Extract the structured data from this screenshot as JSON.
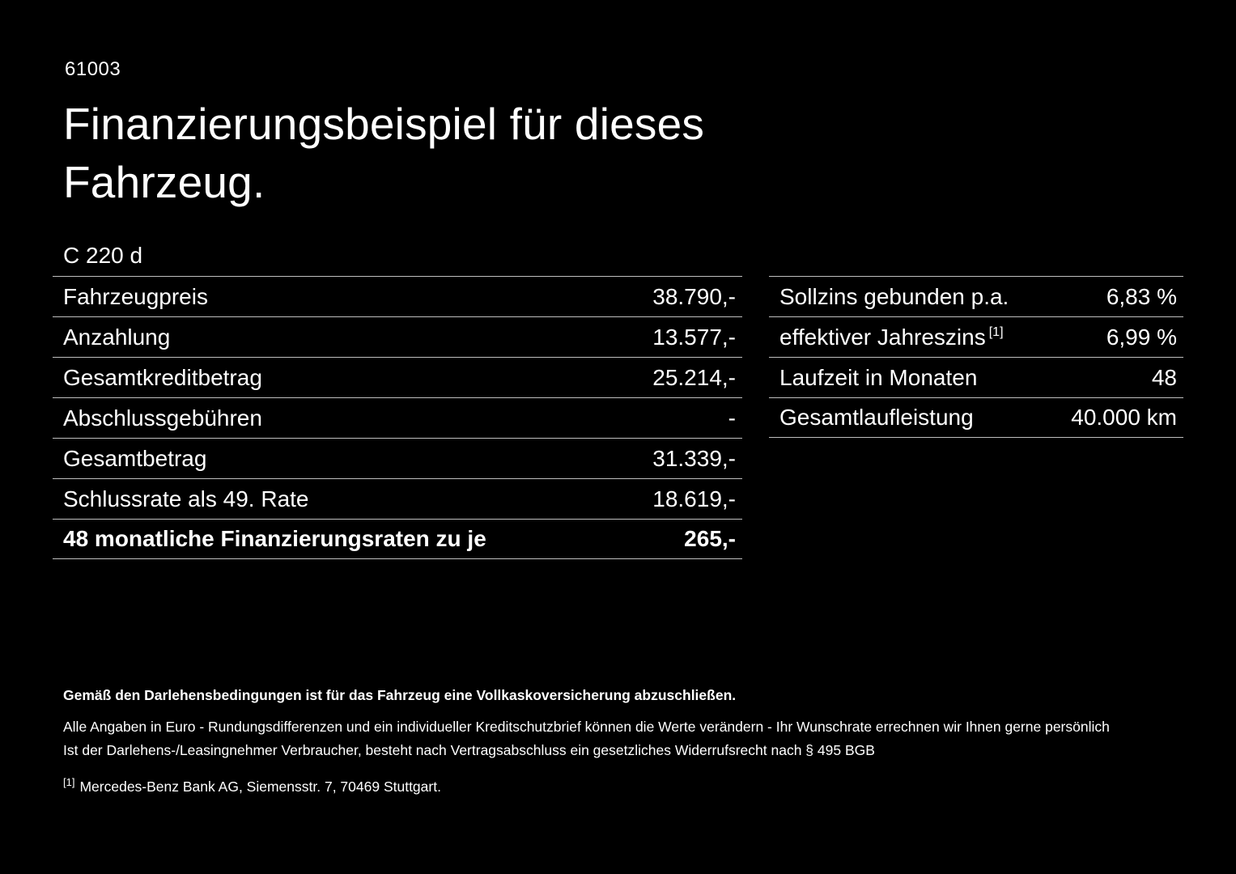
{
  "header": {
    "code": "61003",
    "title_line1": "Finanzierungsbeispiel für dieses",
    "title_line2": "Fahrzeug.",
    "model": "C 220 d"
  },
  "finance_table": {
    "rows": [
      {
        "label": "Fahrzeugpreis",
        "value": "38.790,-"
      },
      {
        "label": "Anzahlung",
        "value": "13.577,-"
      },
      {
        "label": "Gesamtkreditbetrag",
        "value": "25.214,-"
      },
      {
        "label": "Abschlussgebühren",
        "value": "-"
      },
      {
        "label": "Gesamtbetrag",
        "value": "31.339,-"
      },
      {
        "label": "Schlussrate als 49. Rate",
        "value": "18.619,-"
      },
      {
        "label": "48 monatliche Finanzierungsraten zu je",
        "value": "265,-"
      }
    ]
  },
  "conditions_table": {
    "rows": [
      {
        "label": "Sollzins gebunden p.a.",
        "value": "6,83 %"
      },
      {
        "label": "effektiver Jahreszins",
        "footnote_marker": "[1]",
        "value": "6,99 %"
      },
      {
        "label": "Laufzeit in Monaten",
        "value": "48"
      },
      {
        "label": "Gesamtlaufleistung",
        "value": "40.000 km"
      }
    ]
  },
  "footer": {
    "insurance_note": "Gemäß den Darlehensbedingungen ist für das Fahrzeug eine Vollkaskoversicherung abzuschließen.",
    "euro_note": "Alle Angaben in Euro - Rundungsdifferenzen und ein individueller Kreditschutzbrief können die Werte verändern - Ihr Wunschrate errechnen wir Ihnen gerne persönlich",
    "withdrawal_note": "Ist der Darlehens-/Leasingnehmer Verbraucher, besteht nach Vertragsabschluss ein gesetzliches Widerrufsrecht nach § 495 BGB",
    "footnote_marker": "[1]",
    "footnote_text": "Mercedes-Benz Bank AG, Siemensstr. 7, 70469 Stuttgart."
  }
}
